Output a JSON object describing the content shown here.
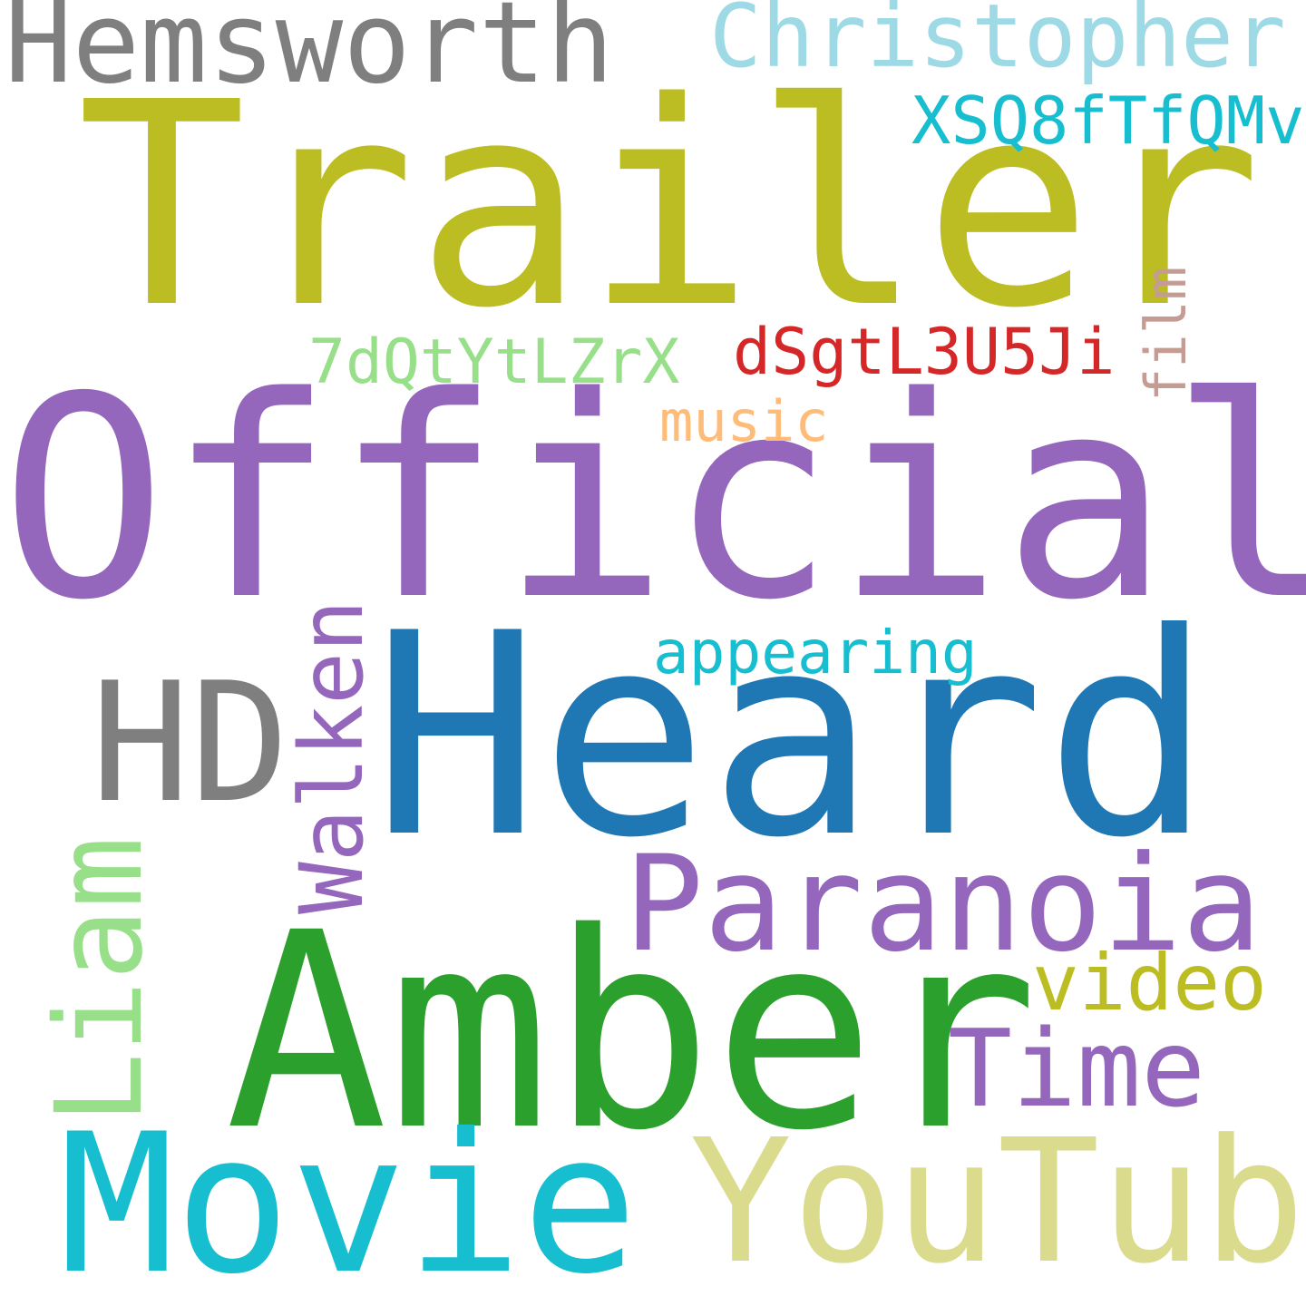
{
  "words": [
    {
      "id": "official",
      "text": "Official",
      "color": "#9467bd",
      "orientation": "horizontal"
    },
    {
      "id": "trailer",
      "text": "Trailer",
      "color": "#bcbd22",
      "orientation": "horizontal"
    },
    {
      "id": "heard",
      "text": "Heard",
      "color": "#1f77b4",
      "orientation": "horizontal"
    },
    {
      "id": "amber",
      "text": "Amber",
      "color": "#2ca02c",
      "orientation": "horizontal"
    },
    {
      "id": "movie",
      "text": "Movie",
      "color": "#17becf",
      "orientation": "horizontal"
    },
    {
      "id": "youtube",
      "text": "YouTube",
      "color": "#dbdb8d",
      "orientation": "horizontal"
    },
    {
      "id": "hemsworth",
      "text": "Hemsworth",
      "color": "#7f7f7f",
      "orientation": "horizontal"
    },
    {
      "id": "christopher",
      "text": "Christopher",
      "color": "#9edae5",
      "orientation": "horizontal"
    },
    {
      "id": "hd",
      "text": "HD",
      "color": "#7f7f7f",
      "orientation": "horizontal"
    },
    {
      "id": "paranoia",
      "text": "Paranoia",
      "color": "#9467bd",
      "orientation": "horizontal"
    },
    {
      "id": "time",
      "text": "Time",
      "color": "#9467bd",
      "orientation": "horizontal"
    },
    {
      "id": "liam",
      "text": "Liam",
      "color": "#98df8a",
      "orientation": "vertical"
    },
    {
      "id": "walken",
      "text": "Walken",
      "color": "#9467bd",
      "orientation": "vertical"
    },
    {
      "id": "video",
      "text": "video",
      "color": "#bcbd22",
      "orientation": "horizontal"
    },
    {
      "id": "xsq8",
      "text": "XSQ8fTfQMv",
      "color": "#17becf",
      "orientation": "horizontal"
    },
    {
      "id": "dsgt",
      "text": "dSgtL3U5Ji",
      "color": "#d62728",
      "orientation": "horizontal"
    },
    {
      "id": "7dqt",
      "text": "7dQtYtLZrX",
      "color": "#98df8a",
      "orientation": "horizontal"
    },
    {
      "id": "appearing",
      "text": "appearing",
      "color": "#17becf",
      "orientation": "horizontal"
    },
    {
      "id": "music",
      "text": "music",
      "color": "#ffbb78",
      "orientation": "horizontal"
    },
    {
      "id": "film",
      "text": "film",
      "color": "#c49c94",
      "orientation": "vertical"
    }
  ]
}
